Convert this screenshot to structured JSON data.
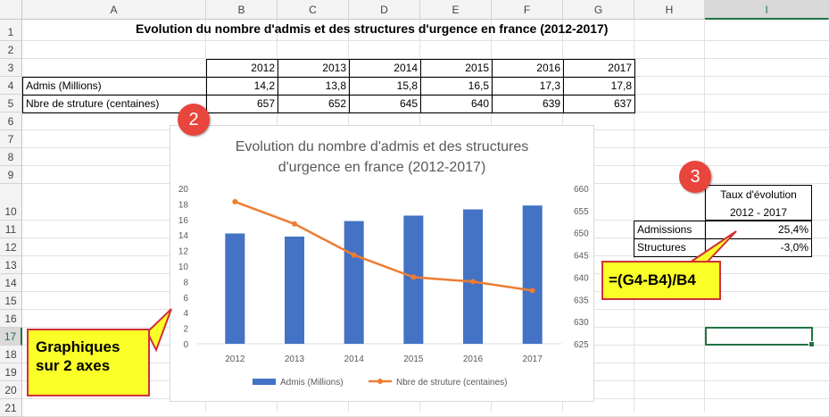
{
  "columns": [
    "A",
    "B",
    "C",
    "D",
    "E",
    "F",
    "G",
    "H",
    "I"
  ],
  "rows": [
    "1",
    "2",
    "3",
    "4",
    "5",
    "6",
    "7",
    "8",
    "9",
    "10",
    "11",
    "12",
    "13",
    "14",
    "15",
    "16",
    "17",
    "18",
    "19",
    "20",
    "21"
  ],
  "sheet_title": "Evolution du nombre d'admis et des structures d'urgence en france (2012-2017)",
  "table": {
    "years": [
      "2012",
      "2013",
      "2014",
      "2015",
      "2016",
      "2017"
    ],
    "row1_label": "Admis (Millions)",
    "row1_values": [
      "14,2",
      "13,8",
      "15,8",
      "16,5",
      "17,3",
      "17,8"
    ],
    "row2_label": "Nbre de struture (centaines)",
    "row2_values": [
      "657",
      "652",
      "645",
      "640",
      "639",
      "637"
    ]
  },
  "evolution": {
    "header_line1": "Taux d'évolution",
    "header_line2": "2012 - 2017",
    "admissions_label": "Admissions",
    "admissions_value": "25,4%",
    "structures_label": "Structures",
    "structures_value": "-3,0%"
  },
  "callouts": {
    "formula": "=(G4-B4)/B4",
    "graph_line1": "Graphiques",
    "graph_line2": "sur 2 axes",
    "badge2": "2",
    "badge3": "3"
  },
  "colors": {
    "bar": "#4472c4",
    "line": "#ed7d31",
    "callout_fill": "#fbff28",
    "callout_border": "#d0303a",
    "badge": "#e8453c",
    "selection": "#217346"
  },
  "chart_data": {
    "type": "bar",
    "title_line1": "Evolution du nombre d'admis et des structures",
    "title_line2": "d'urgence en france (2012-2017)",
    "categories": [
      "2012",
      "2013",
      "2014",
      "2015",
      "2016",
      "2017"
    ],
    "series": [
      {
        "name": "Admis (Millions)",
        "type": "bar",
        "axis": "left",
        "values": [
          14.2,
          13.8,
          15.8,
          16.5,
          17.3,
          17.8
        ]
      },
      {
        "name": "Nbre de struture (centaines)",
        "type": "line",
        "axis": "right",
        "values": [
          657,
          652,
          645,
          640,
          639,
          637
        ]
      }
    ],
    "ylim_left": [
      0,
      20
    ],
    "yticks_left": [
      "0",
      "2",
      "4",
      "6",
      "8",
      "10",
      "12",
      "14",
      "16",
      "18",
      "20"
    ],
    "ylim_right": [
      625,
      660
    ],
    "yticks_right": [
      "625",
      "630",
      "635",
      "640",
      "645",
      "650",
      "655",
      "660"
    ],
    "grid": false,
    "legend_position": "bottom"
  }
}
